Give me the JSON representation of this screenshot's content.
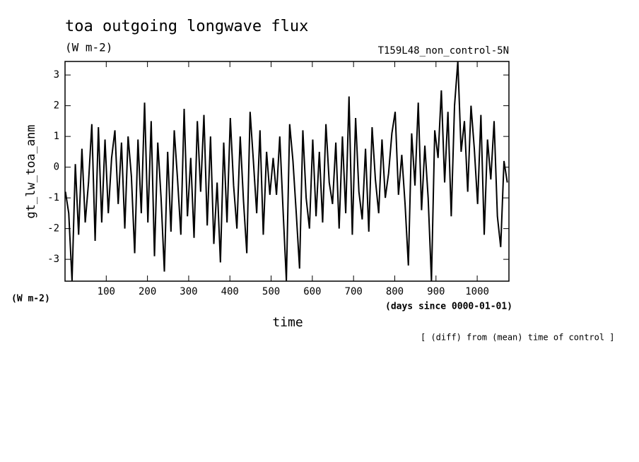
{
  "chart_data": {
    "type": "line",
    "title": "toa outgoing longwave flux",
    "subtitle": "(W m-2)",
    "annotation": "T159L48_non_control-5N",
    "y_label": "gt_lw_toa_anm",
    "y_unit": "(W m-2)",
    "x_label": "time",
    "x_unit": "(days since 0000-01-01)",
    "footnote": "[ (diff) from (mean) time of control ]",
    "x": [
      1,
      9,
      17,
      25,
      33,
      41,
      49,
      57,
      65,
      73,
      81,
      89,
      97,
      105,
      113,
      121,
      129,
      137,
      145,
      153,
      161,
      169,
      177,
      185,
      193,
      201,
      209,
      217,
      225,
      233,
      241,
      249,
      257,
      265,
      273,
      281,
      289,
      297,
      305,
      313,
      321,
      329,
      337,
      345,
      353,
      361,
      369,
      377,
      385,
      393,
      401,
      409,
      417,
      425,
      433,
      441,
      449,
      457,
      465,
      473,
      481,
      489,
      497,
      505,
      513,
      521,
      529,
      537,
      545,
      553,
      561,
      569,
      577,
      585,
      593,
      601,
      609,
      617,
      625,
      633,
      641,
      649,
      657,
      665,
      673,
      681,
      689,
      697,
      705,
      713,
      721,
      729,
      737,
      745,
      753,
      761,
      769,
      777,
      785,
      793,
      801,
      809,
      817,
      825,
      833,
      841,
      849,
      857,
      865,
      873,
      881,
      889,
      897,
      905,
      913,
      921,
      929,
      937,
      945,
      953,
      961,
      969,
      977,
      985,
      993,
      1001,
      1009,
      1017,
      1025,
      1033,
      1041,
      1049,
      1057,
      1065,
      1073
    ],
    "series": [
      {
        "color": "#000000",
        "values": [
          -0.8,
          -1.5,
          -3.7,
          0.1,
          -2.2,
          0.6,
          -1.8,
          -0.5,
          1.4,
          -2.4,
          1.3,
          -1.8,
          0.9,
          -1.5,
          0.3,
          1.2,
          -1.2,
          0.8,
          -2.0,
          1.0,
          -0.3,
          -2.8,
          0.9,
          -1.5,
          2.1,
          -1.8,
          1.5,
          -2.9,
          0.8,
          -1.0,
          -3.4,
          0.5,
          -2.1,
          1.2,
          -0.4,
          -2.2,
          1.9,
          -1.6,
          0.3,
          -2.3,
          1.5,
          -0.8,
          1.7,
          -1.9,
          1.0,
          -2.5,
          -0.5,
          -3.1,
          0.8,
          -1.8,
          1.6,
          -0.6,
          -2.0,
          1.0,
          -1.1,
          -2.8,
          1.8,
          0.2,
          -1.5,
          1.2,
          -2.2,
          0.5,
          -0.9,
          0.3,
          -0.9,
          1.0,
          -1.4,
          -3.7,
          1.4,
          0.2,
          -1.5,
          -3.3,
          1.2,
          -1.0,
          -2.0,
          0.9,
          -1.6,
          0.5,
          -1.8,
          1.4,
          -0.5,
          -1.2,
          0.8,
          -2.0,
          1.0,
          -1.5,
          2.3,
          -2.2,
          1.6,
          -0.8,
          -1.7,
          0.6,
          -2.1,
          1.3,
          -0.4,
          -1.5,
          0.9,
          -1.0,
          -0.2,
          1.1,
          1.8,
          -0.9,
          0.4,
          -1.2,
          -3.2,
          1.1,
          -0.6,
          2.1,
          -1.4,
          0.7,
          -1.0,
          -3.7,
          1.2,
          0.3,
          2.5,
          -0.5,
          1.8,
          -1.6,
          2.0,
          3.44,
          0.5,
          1.5,
          -0.8,
          2.0,
          0.6,
          -1.2,
          1.7,
          -2.2,
          0.9,
          -0.4,
          1.5,
          -1.6,
          -2.6,
          0.2,
          -0.5
        ]
      }
    ],
    "xlim": [
      0,
      1077
    ],
    "ylim": [
      -3.71,
      3.44
    ],
    "xticks": [
      100,
      200,
      300,
      400,
      500,
      600,
      700,
      800,
      900,
      1000
    ],
    "yticks": [
      -3,
      -2,
      -1,
      0,
      1,
      2,
      3
    ]
  }
}
